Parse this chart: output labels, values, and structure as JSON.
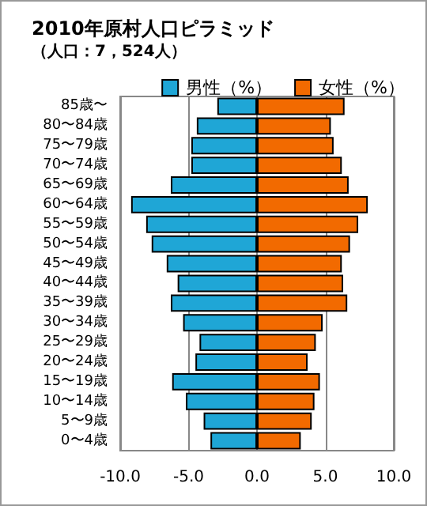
{
  "chart_data": {
    "type": "bar",
    "orientation": "horizontal",
    "title": "2010年原村人口ピラミッド",
    "subtitle": "（人口：7，524人）",
    "categories": [
      "85歳〜",
      "80〜84歳",
      "75〜79歳",
      "70〜74歳",
      "65〜69歳",
      "60〜64歳",
      "55〜59歳",
      "50〜54歳",
      "45〜49歳",
      "40〜44歳",
      "35〜39歳",
      "30〜34歳",
      "25〜29歳",
      "20〜24歳",
      "15〜19歳",
      "10〜14歳",
      "5〜9歳",
      "0〜4歳"
    ],
    "series": [
      {
        "name": "男性（%）",
        "color": "#1fa6d6",
        "values": [
          -2.9,
          -4.4,
          -4.8,
          -4.8,
          -6.3,
          -9.2,
          -8.1,
          -7.7,
          -6.6,
          -5.8,
          -6.3,
          -5.4,
          -4.2,
          -4.5,
          -6.2,
          -5.2,
          -3.9,
          -3.4
        ]
      },
      {
        "name": "女性（%）",
        "color": "#f26a00",
        "values": [
          6.4,
          5.4,
          5.6,
          6.2,
          6.7,
          8.1,
          7.4,
          6.8,
          6.2,
          6.3,
          6.6,
          4.8,
          4.3,
          3.7,
          4.6,
          4.2,
          4.0,
          3.2
        ]
      }
    ],
    "xlim": [
      -10,
      10
    ],
    "xticks": [
      {
        "value": -10,
        "label": "-10.0"
      },
      {
        "value": -5,
        "label": "-5.0"
      },
      {
        "value": 0,
        "label": "0.0"
      },
      {
        "value": 5,
        "label": "5.0"
      },
      {
        "value": 10,
        "label": "10.0"
      }
    ],
    "stacked": true,
    "grid": "x",
    "legend": "top right"
  }
}
